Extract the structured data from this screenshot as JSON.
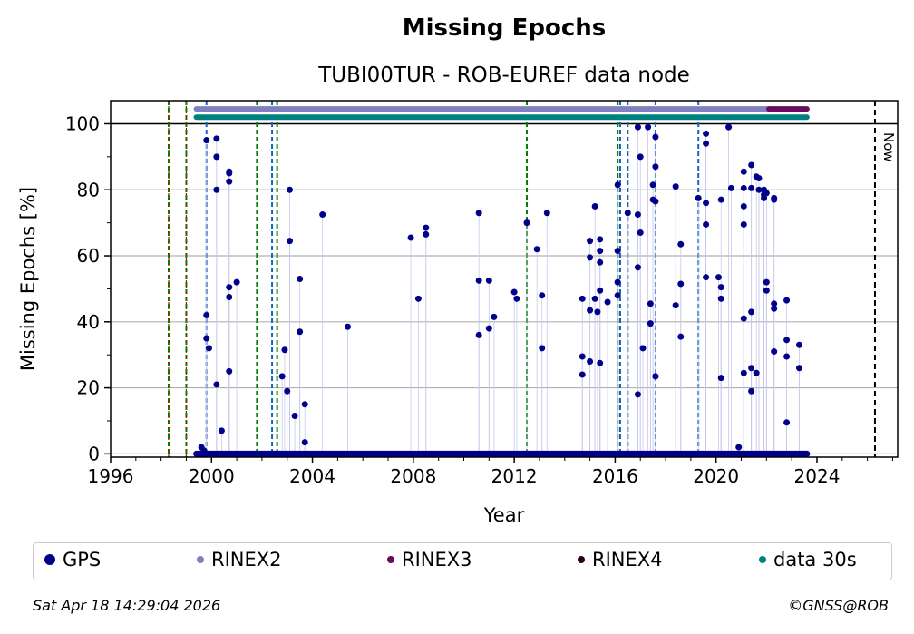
{
  "title": "Missing Epochs",
  "subtitle": "TUBI00TUR - ROB-EUREF data node",
  "footer": {
    "date": "Sat Apr 18 14:29:04 2026",
    "copyright": "©GNSS@ROB"
  },
  "colors": {
    "gps": "#00008b",
    "rinex2": "#8080c0",
    "rinex3": "#6a0a5e",
    "rinex4": "#2a0020",
    "data30s": "#008080",
    "green_line": "#008000",
    "blue_line": "#1565c0",
    "red_line": "#cc0000",
    "grid": "#b0b0b0",
    "now_line": "#000000"
  },
  "legend": [
    {
      "label": "GPS",
      "color": "#00008b"
    },
    {
      "label": "RINEX2",
      "color": "#8080c0"
    },
    {
      "label": "RINEX3",
      "color": "#6a0a5e"
    },
    {
      "label": "RINEX4",
      "color": "#2a0020"
    },
    {
      "label": "data 30s",
      "color": "#008080"
    }
  ],
  "chart_data": {
    "type": "scatter",
    "title": "Missing Epochs",
    "subtitle": "TUBI00TUR - ROB-EUREF data node",
    "xlabel": "Year",
    "ylabel": "Missing Epochs [%]",
    "xlim": [
      1996,
      2027.2
    ],
    "ylim": [
      -1,
      107
    ],
    "xticks": [
      1996,
      2000,
      2004,
      2008,
      2012,
      2016,
      2020,
      2024
    ],
    "xtick_labels": [
      "1996",
      "2000",
      "2004",
      "2008",
      "2012",
      "2016",
      "2020",
      "2024"
    ],
    "yticks": [
      0,
      20,
      40,
      60,
      80,
      100
    ],
    "ytick_labels": [
      "0",
      "20",
      "40",
      "60",
      "80",
      "100"
    ],
    "grid": "horizontal",
    "legend_position": "below plot",
    "reference_line_100": true,
    "now_label": "Now",
    "now_x": 2026.3,
    "baseline_range": [
      1999.4,
      2023.6
    ],
    "green_vlines": [
      1998.3,
      1999.0,
      2001.8,
      2002.6,
      2012.5,
      2016.1
    ],
    "red_vlines": [
      1998.3,
      1999.0
    ],
    "blue_vlines": [
      1999.8,
      2002.4,
      2016.2,
      2016.5,
      2017.6,
      2019.3
    ],
    "bars": [
      {
        "name": "RINEX2",
        "y": 104.5,
        "x_start": 1999.4,
        "x_end": 2022.1
      },
      {
        "name": "RINEX3",
        "y": 104.5,
        "x_start": 2022.1,
        "x_end": 2023.6
      },
      {
        "name": "data 30s",
        "y": 102,
        "x_start": 1999.4,
        "x_end": 2023.6
      }
    ],
    "series": [
      {
        "name": "GPS",
        "points": [
          [
            1999.6,
            2
          ],
          [
            1999.7,
            1
          ],
          [
            1999.8,
            95
          ],
          [
            1999.8,
            42
          ],
          [
            1999.8,
            35
          ],
          [
            1999.9,
            32
          ],
          [
            2000.2,
            95.5
          ],
          [
            2000.2,
            90
          ],
          [
            2000.2,
            80
          ],
          [
            2000.2,
            21
          ],
          [
            2000.4,
            7
          ],
          [
            2000.7,
            85
          ],
          [
            2000.7,
            85.5
          ],
          [
            2000.7,
            82.5
          ],
          [
            2000.7,
            50.5
          ],
          [
            2000.7,
            47.5
          ],
          [
            2000.7,
            25
          ],
          [
            2001.0,
            52
          ],
          [
            2002.9,
            31.5
          ],
          [
            2002.8,
            23.5
          ],
          [
            2003.0,
            19
          ],
          [
            2003.1,
            80
          ],
          [
            2003.1,
            64.5
          ],
          [
            2003.3,
            11.5
          ],
          [
            2003.5,
            53
          ],
          [
            2003.5,
            37
          ],
          [
            2003.7,
            15
          ],
          [
            2003.7,
            3.5
          ],
          [
            2004.4,
            72.5
          ],
          [
            2005.4,
            38.5
          ],
          [
            2007.9,
            65.5
          ],
          [
            2008.2,
            47
          ],
          [
            2008.5,
            66.5
          ],
          [
            2008.5,
            68.5
          ],
          [
            2010.6,
            73
          ],
          [
            2010.6,
            52.5
          ],
          [
            2010.6,
            36
          ],
          [
            2011.0,
            52.5
          ],
          [
            2011.0,
            38
          ],
          [
            2011.2,
            41.5
          ],
          [
            2012.0,
            49
          ],
          [
            2012.1,
            47
          ],
          [
            2012.5,
            70
          ],
          [
            2012.9,
            62
          ],
          [
            2013.1,
            48
          ],
          [
            2013.1,
            32
          ],
          [
            2013.3,
            73
          ],
          [
            2014.7,
            47
          ],
          [
            2014.7,
            29.5
          ],
          [
            2014.7,
            24
          ],
          [
            2015.0,
            64.5
          ],
          [
            2015.0,
            59.5
          ],
          [
            2015.0,
            43.5
          ],
          [
            2015.0,
            28
          ],
          [
            2015.2,
            75
          ],
          [
            2015.2,
            47
          ],
          [
            2015.3,
            43
          ],
          [
            2015.4,
            27.5
          ],
          [
            2015.4,
            65
          ],
          [
            2015.4,
            61.5
          ],
          [
            2015.4,
            58
          ],
          [
            2015.4,
            49.5
          ],
          [
            2015.7,
            46
          ],
          [
            2016.1,
            81.5
          ],
          [
            2016.1,
            61.5
          ],
          [
            2016.1,
            52
          ],
          [
            2016.1,
            48
          ],
          [
            2016.5,
            73
          ],
          [
            2016.9,
            99
          ],
          [
            2016.9,
            72.5
          ],
          [
            2016.9,
            18
          ],
          [
            2016.9,
            56.5
          ],
          [
            2017.0,
            90
          ],
          [
            2017.0,
            67
          ],
          [
            2017.1,
            32
          ],
          [
            2017.3,
            99
          ],
          [
            2017.4,
            45.5
          ],
          [
            2017.4,
            39.5
          ],
          [
            2017.5,
            81.5
          ],
          [
            2017.5,
            77
          ],
          [
            2017.6,
            96
          ],
          [
            2017.6,
            87
          ],
          [
            2017.6,
            76.5
          ],
          [
            2017.6,
            23.5
          ],
          [
            2017.6,
            23.5
          ],
          [
            2018.4,
            81
          ],
          [
            2018.4,
            45
          ],
          [
            2018.6,
            63.5
          ],
          [
            2018.6,
            51.5
          ],
          [
            2018.6,
            35.5
          ],
          [
            2019.3,
            77.5
          ],
          [
            2019.6,
            97
          ],
          [
            2019.6,
            94
          ],
          [
            2019.6,
            76
          ],
          [
            2019.6,
            69.5
          ],
          [
            2019.6,
            53.5
          ],
          [
            2020.1,
            53.5
          ],
          [
            2020.2,
            77
          ],
          [
            2020.2,
            50.5
          ],
          [
            2020.2,
            47
          ],
          [
            2020.2,
            23
          ],
          [
            2020.5,
            99
          ],
          [
            2020.6,
            80.5
          ],
          [
            2020.9,
            2
          ],
          [
            2021.1,
            85.5
          ],
          [
            2021.1,
            80.5
          ],
          [
            2021.1,
            75
          ],
          [
            2021.1,
            69.5
          ],
          [
            2021.1,
            41
          ],
          [
            2021.1,
            24.5
          ],
          [
            2021.4,
            87.5
          ],
          [
            2021.4,
            80.5
          ],
          [
            2021.4,
            43
          ],
          [
            2021.4,
            26
          ],
          [
            2021.4,
            19
          ],
          [
            2021.6,
            84
          ],
          [
            2021.7,
            83.5
          ],
          [
            2021.7,
            80
          ],
          [
            2021.6,
            24.5
          ],
          [
            2021.9,
            80
          ],
          [
            2021.9,
            78.5
          ],
          [
            2021.9,
            77.5
          ],
          [
            2022.0,
            79
          ],
          [
            2022.0,
            52
          ],
          [
            2022.0,
            49.5
          ],
          [
            2022.3,
            77.5
          ],
          [
            2022.3,
            77
          ],
          [
            2022.3,
            45.5
          ],
          [
            2022.3,
            44
          ],
          [
            2022.3,
            31
          ],
          [
            2022.8,
            46.5
          ],
          [
            2022.8,
            34.5
          ],
          [
            2022.8,
            29.5
          ],
          [
            2022.8,
            9.5
          ],
          [
            2023.3,
            33
          ],
          [
            2023.3,
            26
          ]
        ]
      }
    ]
  }
}
